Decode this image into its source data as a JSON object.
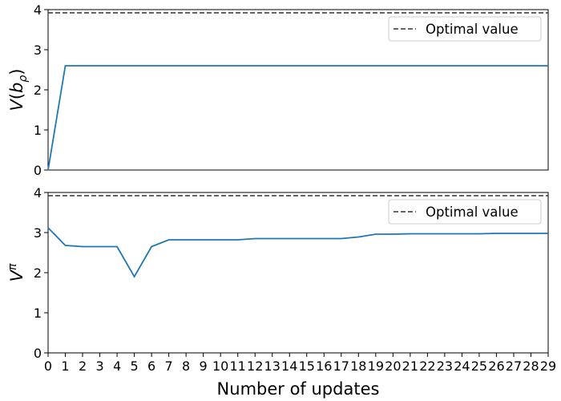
{
  "chart_data": [
    {
      "type": "line",
      "ylabel": "V(b_ρ)",
      "ylim": [
        0,
        4
      ],
      "yticks": [
        "0",
        "1",
        "2",
        "3",
        "4"
      ],
      "xlim": [
        0,
        29
      ],
      "legend": {
        "placement": "top-right",
        "entries": [
          "Optimal value"
        ]
      },
      "optimal_value": 3.92,
      "x": [
        0,
        1,
        2,
        3,
        4,
        5,
        6,
        7,
        8,
        9,
        10,
        11,
        12,
        13,
        14,
        15,
        16,
        17,
        18,
        19,
        20,
        21,
        22,
        23,
        24,
        25,
        26,
        27,
        28,
        29
      ],
      "series": [
        {
          "values": [
            0.0,
            2.6,
            2.6,
            2.6,
            2.6,
            2.6,
            2.6,
            2.6,
            2.6,
            2.6,
            2.6,
            2.6,
            2.6,
            2.6,
            2.6,
            2.6,
            2.6,
            2.6,
            2.6,
            2.6,
            2.6,
            2.6,
            2.6,
            2.6,
            2.6,
            2.6,
            2.6,
            2.6,
            2.6,
            2.6
          ],
          "color": "#1f77b4"
        }
      ],
      "grid": false
    },
    {
      "type": "line",
      "ylabel": "V^π",
      "xlabel": "Number of updates",
      "ylim": [
        0,
        4
      ],
      "yticks": [
        "0",
        "1",
        "2",
        "3",
        "4"
      ],
      "xlim": [
        0,
        29
      ],
      "xticks": [
        "0",
        "1",
        "2",
        "3",
        "4",
        "5",
        "6",
        "7",
        "8",
        "9",
        "10",
        "11",
        "12",
        "13",
        "14",
        "15",
        "16",
        "17",
        "18",
        "19",
        "20",
        "21",
        "22",
        "23",
        "24",
        "25",
        "26",
        "27",
        "28",
        "29"
      ],
      "legend": {
        "placement": "top-right",
        "entries": [
          "Optimal value"
        ]
      },
      "optimal_value": 3.92,
      "x": [
        0,
        1,
        2,
        3,
        4,
        5,
        6,
        7,
        8,
        9,
        10,
        11,
        12,
        13,
        14,
        15,
        16,
        17,
        18,
        19,
        20,
        21,
        22,
        23,
        24,
        25,
        26,
        27,
        28,
        29
      ],
      "series": [
        {
          "values": [
            3.12,
            2.68,
            2.65,
            2.65,
            2.65,
            1.9,
            2.65,
            2.82,
            2.82,
            2.82,
            2.82,
            2.82,
            2.85,
            2.85,
            2.85,
            2.85,
            2.85,
            2.85,
            2.89,
            2.96,
            2.96,
            2.97,
            2.97,
            2.97,
            2.97,
            2.97,
            2.98,
            2.98,
            2.98,
            2.98
          ],
          "color": "#1f77b4"
        }
      ],
      "grid": false
    }
  ],
  "colors": {
    "line": "#1f77b4",
    "optimal": "#333333",
    "axes": "#000000",
    "legend_border": "#cccccc"
  }
}
